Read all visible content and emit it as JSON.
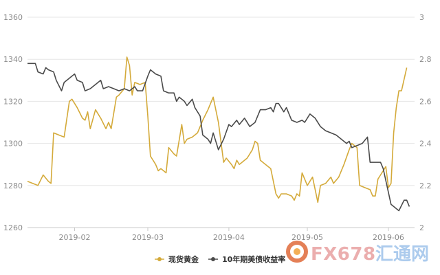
{
  "chart_data": {
    "type": "line",
    "title": "",
    "xlabel": "",
    "ylabel_left": "",
    "ylabel_right": "",
    "grid": true,
    "legend_position": "bottom-center",
    "y_left": {
      "range": [
        1260,
        1360
      ],
      "ticks": [
        "1260",
        "1280",
        "1300",
        "1320",
        "1340",
        "1360"
      ]
    },
    "y_right": {
      "range": [
        2,
        3
      ],
      "ticks": [
        "2",
        "2.2",
        "2.4",
        "2.6",
        "2.8",
        "3"
      ]
    },
    "x_range": [
      "2019-01-14",
      "2019-06-11"
    ],
    "x_ticks": [
      {
        "label": "2019-02",
        "date": "2019-02-01"
      },
      {
        "label": "2019-03",
        "date": "2019-03-01"
      },
      {
        "label": "2019-04",
        "date": "2019-04-01"
      },
      {
        "label": "2019-05",
        "date": "2019-05-01"
      },
      {
        "label": "2019-06",
        "date": "2019-06-01"
      }
    ],
    "series": [
      {
        "name": "现货黄金",
        "axis": "left",
        "color": "#d4aa3a",
        "points": [
          [
            "2019-01-14",
            1282
          ],
          [
            "2019-01-16",
            1281
          ],
          [
            "2019-01-18",
            1280
          ],
          [
            "2019-01-20",
            1285
          ],
          [
            "2019-01-22",
            1282
          ],
          [
            "2019-01-23",
            1281
          ],
          [
            "2019-01-24",
            1305
          ],
          [
            "2019-01-26",
            1304
          ],
          [
            "2019-01-28",
            1303
          ],
          [
            "2019-01-30",
            1320
          ],
          [
            "2019-01-31",
            1321
          ],
          [
            "2019-02-02",
            1317
          ],
          [
            "2019-02-04",
            1312
          ],
          [
            "2019-02-05",
            1311
          ],
          [
            "2019-02-06",
            1315
          ],
          [
            "2019-02-07",
            1307
          ],
          [
            "2019-02-09",
            1316
          ],
          [
            "2019-02-11",
            1312
          ],
          [
            "2019-02-13",
            1307
          ],
          [
            "2019-02-14",
            1310
          ],
          [
            "2019-02-15",
            1307
          ],
          [
            "2019-02-17",
            1322
          ],
          [
            "2019-02-18",
            1323
          ],
          [
            "2019-02-20",
            1326
          ],
          [
            "2019-02-21",
            1341
          ],
          [
            "2019-02-22",
            1337
          ],
          [
            "2019-02-23",
            1323
          ],
          [
            "2019-02-24",
            1329
          ],
          [
            "2019-02-26",
            1328
          ],
          [
            "2019-02-28",
            1329
          ],
          [
            "2019-03-01",
            1313
          ],
          [
            "2019-03-02",
            1294
          ],
          [
            "2019-03-04",
            1290
          ],
          [
            "2019-03-05",
            1287
          ],
          [
            "2019-03-06",
            1288
          ],
          [
            "2019-03-08",
            1286
          ],
          [
            "2019-03-09",
            1298
          ],
          [
            "2019-03-11",
            1295
          ],
          [
            "2019-03-12",
            1294
          ],
          [
            "2019-03-14",
            1309
          ],
          [
            "2019-03-15",
            1300
          ],
          [
            "2019-03-16",
            1302
          ],
          [
            "2019-03-18",
            1303
          ],
          [
            "2019-03-20",
            1305
          ],
          [
            "2019-03-22",
            1311
          ],
          [
            "2019-03-24",
            1316
          ],
          [
            "2019-03-26",
            1322
          ],
          [
            "2019-03-28",
            1310
          ],
          [
            "2019-03-30",
            1291
          ],
          [
            "2019-03-31",
            1293
          ],
          [
            "2019-04-02",
            1290
          ],
          [
            "2019-04-03",
            1288
          ],
          [
            "2019-04-04",
            1292
          ],
          [
            "2019-04-05",
            1290
          ],
          [
            "2019-04-07",
            1292
          ],
          [
            "2019-04-08",
            1293
          ],
          [
            "2019-04-10",
            1297
          ],
          [
            "2019-04-11",
            1301
          ],
          [
            "2019-04-12",
            1300
          ],
          [
            "2019-04-13",
            1292
          ],
          [
            "2019-04-15",
            1290
          ],
          [
            "2019-04-17",
            1288
          ],
          [
            "2019-04-19",
            1276
          ],
          [
            "2019-04-20",
            1274
          ],
          [
            "2019-04-21",
            1276
          ],
          [
            "2019-04-23",
            1276
          ],
          [
            "2019-04-25",
            1275
          ],
          [
            "2019-04-26",
            1273
          ],
          [
            "2019-04-27",
            1276
          ],
          [
            "2019-04-28",
            1275
          ],
          [
            "2019-04-29",
            1286
          ],
          [
            "2019-04-30",
            1283
          ],
          [
            "2019-05-01",
            1280
          ],
          [
            "2019-05-03",
            1284
          ],
          [
            "2019-05-05",
            1272
          ],
          [
            "2019-05-06",
            1280
          ],
          [
            "2019-05-08",
            1281
          ],
          [
            "2019-05-10",
            1284
          ],
          [
            "2019-05-11",
            1281
          ],
          [
            "2019-05-13",
            1284
          ],
          [
            "2019-05-15",
            1290
          ],
          [
            "2019-05-17",
            1297
          ],
          [
            "2019-05-18",
            1300
          ],
          [
            "2019-05-20",
            1298
          ],
          [
            "2019-05-21",
            1280
          ],
          [
            "2019-05-23",
            1279
          ],
          [
            "2019-05-25",
            1278
          ],
          [
            "2019-05-26",
            1275
          ],
          [
            "2019-05-27",
            1275
          ],
          [
            "2019-05-28",
            1283
          ],
          [
            "2019-05-29",
            1285
          ],
          [
            "2019-05-31",
            1289
          ],
          [
            "2019-06-01",
            1279
          ],
          [
            "2019-06-02",
            1281
          ],
          [
            "2019-06-03",
            1305
          ],
          [
            "2019-06-04",
            1317
          ],
          [
            "2019-06-05",
            1325
          ],
          [
            "2019-06-06",
            1325
          ],
          [
            "2019-06-08",
            1336
          ]
        ]
      },
      {
        "name": "10年期美债收益率",
        "axis": "right",
        "color": "#4a4a4a",
        "points": [
          [
            "2019-01-14",
            2.78
          ],
          [
            "2019-01-17",
            2.78
          ],
          [
            "2019-01-18",
            2.74
          ],
          [
            "2019-01-20",
            2.73
          ],
          [
            "2019-01-21",
            2.76
          ],
          [
            "2019-01-22",
            2.75
          ],
          [
            "2019-01-24",
            2.74
          ],
          [
            "2019-01-25",
            2.7
          ],
          [
            "2019-01-27",
            2.65
          ],
          [
            "2019-01-28",
            2.69
          ],
          [
            "2019-01-30",
            2.71
          ],
          [
            "2019-02-01",
            2.73
          ],
          [
            "2019-02-02",
            2.7
          ],
          [
            "2019-02-04",
            2.69
          ],
          [
            "2019-02-05",
            2.65
          ],
          [
            "2019-02-07",
            2.66
          ],
          [
            "2019-02-09",
            2.68
          ],
          [
            "2019-02-11",
            2.7
          ],
          [
            "2019-02-12",
            2.66
          ],
          [
            "2019-02-14",
            2.67
          ],
          [
            "2019-02-16",
            2.66
          ],
          [
            "2019-02-18",
            2.65
          ],
          [
            "2019-02-20",
            2.66
          ],
          [
            "2019-02-22",
            2.65
          ],
          [
            "2019-02-24",
            2.67
          ],
          [
            "2019-02-25",
            2.65
          ],
          [
            "2019-02-27",
            2.65
          ],
          [
            "2019-03-01",
            2.72
          ],
          [
            "2019-03-02",
            2.75
          ],
          [
            "2019-03-04",
            2.73
          ],
          [
            "2019-03-06",
            2.72
          ],
          [
            "2019-03-07",
            2.65
          ],
          [
            "2019-03-09",
            2.64
          ],
          [
            "2019-03-11",
            2.64
          ],
          [
            "2019-03-12",
            2.6
          ],
          [
            "2019-03-13",
            2.62
          ],
          [
            "2019-03-15",
            2.6
          ],
          [
            "2019-03-16",
            2.58
          ],
          [
            "2019-03-18",
            2.61
          ],
          [
            "2019-03-19",
            2.57
          ],
          [
            "2019-03-21",
            2.53
          ],
          [
            "2019-03-22",
            2.44
          ],
          [
            "2019-03-24",
            2.42
          ],
          [
            "2019-03-25",
            2.4
          ],
          [
            "2019-03-26",
            2.45
          ],
          [
            "2019-03-28",
            2.37
          ],
          [
            "2019-03-30",
            2.42
          ],
          [
            "2019-04-01",
            2.49
          ],
          [
            "2019-04-02",
            2.48
          ],
          [
            "2019-04-04",
            2.51
          ],
          [
            "2019-04-05",
            2.49
          ],
          [
            "2019-04-07",
            2.52
          ],
          [
            "2019-04-09",
            2.48
          ],
          [
            "2019-04-11",
            2.5
          ],
          [
            "2019-04-13",
            2.56
          ],
          [
            "2019-04-15",
            2.56
          ],
          [
            "2019-04-17",
            2.57
          ],
          [
            "2019-04-18",
            2.55
          ],
          [
            "2019-04-19",
            2.59
          ],
          [
            "2019-04-20",
            2.59
          ],
          [
            "2019-04-22",
            2.55
          ],
          [
            "2019-04-23",
            2.57
          ],
          [
            "2019-04-25",
            2.51
          ],
          [
            "2019-04-27",
            2.5
          ],
          [
            "2019-04-29",
            2.51
          ],
          [
            "2019-04-30",
            2.5
          ],
          [
            "2019-05-02",
            2.54
          ],
          [
            "2019-05-04",
            2.52
          ],
          [
            "2019-05-06",
            2.48
          ],
          [
            "2019-05-08",
            2.46
          ],
          [
            "2019-05-10",
            2.45
          ],
          [
            "2019-05-12",
            2.44
          ],
          [
            "2019-05-14",
            2.42
          ],
          [
            "2019-05-16",
            2.4
          ],
          [
            "2019-05-17",
            2.41
          ],
          [
            "2019-05-18",
            2.38
          ],
          [
            "2019-05-20",
            2.39
          ],
          [
            "2019-05-22",
            2.4
          ],
          [
            "2019-05-24",
            2.43
          ],
          [
            "2019-05-25",
            2.31
          ],
          [
            "2019-05-27",
            2.31
          ],
          [
            "2019-05-29",
            2.31
          ],
          [
            "2019-05-30",
            2.28
          ],
          [
            "2019-06-02",
            2.11
          ],
          [
            "2019-06-05",
            2.08
          ],
          [
            "2019-06-07",
            2.13
          ],
          [
            "2019-06-08",
            2.13
          ],
          [
            "2019-06-09",
            2.1
          ]
        ]
      }
    ]
  }
}
